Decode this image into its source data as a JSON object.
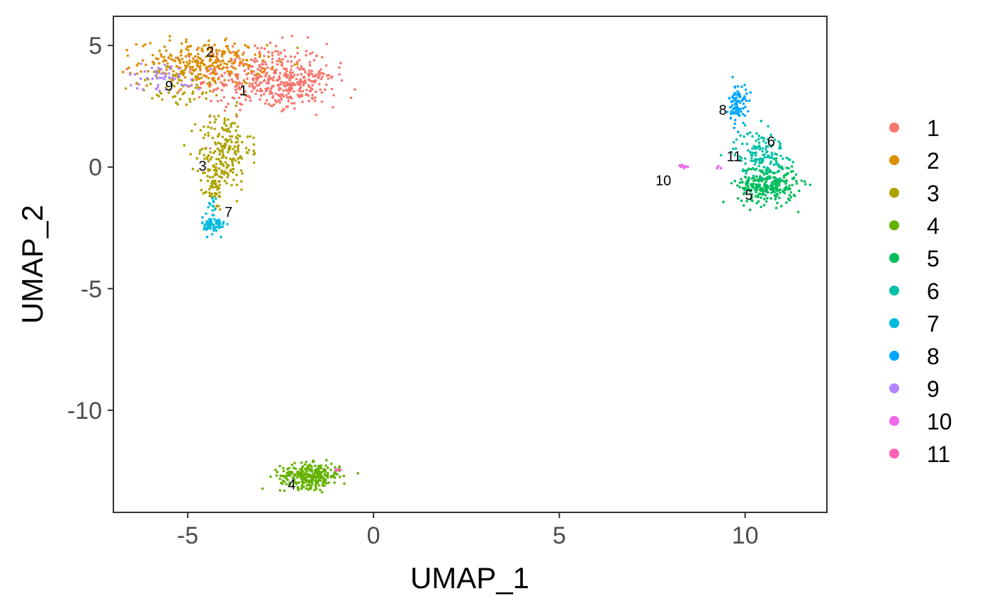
{
  "chart_data": {
    "type": "scatter",
    "title": "",
    "xlabel": "UMAP_1",
    "ylabel": "UMAP_2",
    "xlim": [
      -7.0,
      12.2
    ],
    "ylim": [
      -14.2,
      6.2
    ],
    "xticks": [
      -5,
      0,
      5,
      10
    ],
    "xtick_labels": [
      "-5",
      "0",
      "5",
      "10"
    ],
    "yticks": [
      5,
      0,
      -5,
      -10
    ],
    "ytick_labels": [
      "5",
      "0",
      "-5",
      "-10"
    ],
    "grid": false,
    "legend_position": "right",
    "series": [
      {
        "name": "1",
        "color": "#F8766D",
        "label_pos": [
          -3.5,
          3.1
        ],
        "clusters": [
          {
            "cx": -3.0,
            "cy": 3.7,
            "sx": 0.9,
            "sy": 0.7,
            "n": 360
          },
          {
            "cx": -2.0,
            "cy": 3.3,
            "sx": 0.5,
            "sy": 0.4,
            "n": 140
          }
        ]
      },
      {
        "name": "2",
        "color": "#DB8E00",
        "label_pos": [
          -4.4,
          4.7
        ],
        "clusters": [
          {
            "cx": -4.6,
            "cy": 4.3,
            "sx": 0.85,
            "sy": 0.45,
            "n": 280
          }
        ]
      },
      {
        "name": "3",
        "color": "#AEA200",
        "label_pos": [
          -4.6,
          0.0
        ],
        "clusters": [
          {
            "cx": -4.0,
            "cy": 0.7,
            "sx": 0.35,
            "sy": 0.8,
            "n": 200
          },
          {
            "cx": -4.3,
            "cy": -0.8,
            "sx": 0.12,
            "sy": 0.5,
            "n": 60
          },
          {
            "cx": -5.2,
            "cy": 3.3,
            "sx": 0.6,
            "sy": 0.4,
            "n": 60
          }
        ]
      },
      {
        "name": "4",
        "color": "#64B200",
        "label_pos": [
          -2.2,
          -13.1
        ],
        "clusters": [
          {
            "cx": -1.7,
            "cy": -12.7,
            "sx": 0.4,
            "sy": 0.25,
            "n": 300
          }
        ]
      },
      {
        "name": "5",
        "color": "#00BD5C",
        "label_pos": [
          10.1,
          -1.2
        ],
        "clusters": [
          {
            "cx": 10.6,
            "cy": -0.7,
            "sx": 0.4,
            "sy": 0.4,
            "n": 300
          }
        ]
      },
      {
        "name": "6",
        "color": "#00C1A7",
        "label_pos": [
          10.7,
          1.0
        ],
        "clusters": [
          {
            "cx": 10.4,
            "cy": 0.6,
            "sx": 0.35,
            "sy": 0.45,
            "n": 130
          }
        ]
      },
      {
        "name": "7",
        "color": "#00BADE",
        "label_pos": [
          -3.9,
          -1.9
        ],
        "clusters": [
          {
            "cx": -4.3,
            "cy": -2.4,
            "sx": 0.15,
            "sy": 0.18,
            "n": 70
          },
          {
            "cx": -4.35,
            "cy": -1.6,
            "sx": 0.08,
            "sy": 0.3,
            "n": 15
          }
        ]
      },
      {
        "name": "8",
        "color": "#00A6FF",
        "label_pos": [
          9.4,
          2.3
        ],
        "clusters": [
          {
            "cx": 9.8,
            "cy": 2.6,
            "sx": 0.12,
            "sy": 0.4,
            "n": 90
          }
        ]
      },
      {
        "name": "9",
        "color": "#B385FF",
        "label_pos": [
          -5.5,
          3.3
        ],
        "clusters": [
          {
            "cx": -5.6,
            "cy": 3.7,
            "sx": 0.5,
            "sy": 0.3,
            "n": 50
          }
        ]
      },
      {
        "name": "10",
        "color": "#EF67EB",
        "label_pos": [
          7.8,
          -0.6
        ],
        "clusters": [
          {
            "cx": 8.3,
            "cy": 0.05,
            "sx": 0.08,
            "sy": 0.06,
            "n": 10
          },
          {
            "cx": 9.3,
            "cy": -0.05,
            "sx": 0.1,
            "sy": 0.05,
            "n": 4
          }
        ]
      },
      {
        "name": "11",
        "color": "#FF63B6",
        "label_pos": [
          9.7,
          0.4
        ],
        "clusters": [
          {
            "cx": -1.0,
            "cy": -12.5,
            "sx": 0.1,
            "sy": 0.05,
            "n": 5
          }
        ]
      }
    ]
  }
}
